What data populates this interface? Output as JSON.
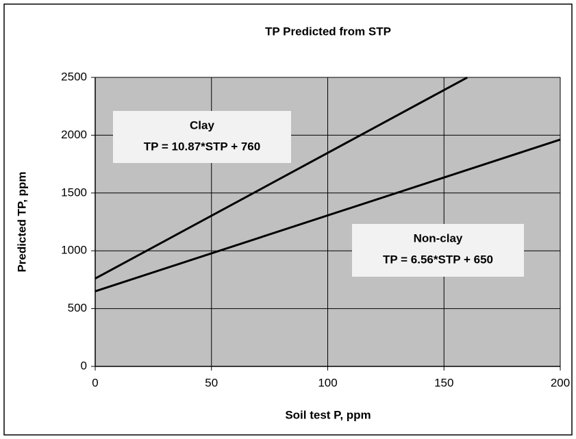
{
  "chart_data": {
    "type": "line",
    "title": "TP Predicted from STP",
    "x_label": "Soil test P, ppm",
    "y_label": "Predicted TP, ppm",
    "series": [
      {
        "name": "Clay",
        "color": "#000000",
        "x": [
          0,
          160
        ],
        "values": [
          760,
          2499
        ]
      },
      {
        "name": "Non-clay",
        "color": "#000000",
        "x": [
          0,
          200
        ],
        "values": [
          650,
          1962
        ]
      }
    ],
    "annotations": [
      {
        "lines": [
          "Clay",
          "TP = 10.87*STP + 760"
        ]
      },
      {
        "lines": [
          "Non-clay",
          "TP = 6.56*STP + 650"
        ]
      }
    ],
    "xlim": [
      0,
      200
    ],
    "xticks": [
      0,
      50,
      100,
      150,
      200
    ],
    "ylim": [
      0,
      2500
    ],
    "yticks": [
      0,
      500,
      1000,
      1500,
      2000,
      2500
    ],
    "grid": true,
    "plot_background": "#c0c0c0"
  }
}
